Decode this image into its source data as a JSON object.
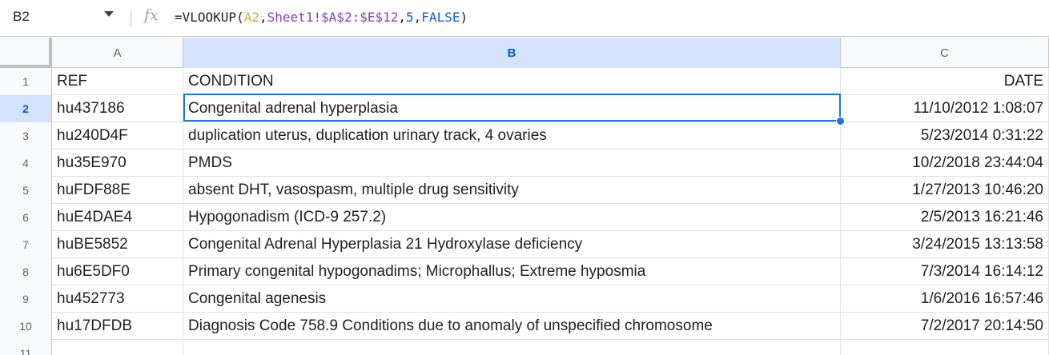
{
  "name_box": {
    "value": "B2"
  },
  "formula_bar": {
    "fx_label": "fx",
    "formula": {
      "prefix": "=VLOOKUP(",
      "arg1": "A2",
      "sep1": ",",
      "arg2": "Sheet1!$A$2:$E$12",
      "sep2": ",",
      "arg3": "5",
      "sep3": ",",
      "arg4": "FALSE",
      "suffix": ")"
    }
  },
  "columns": [
    {
      "label": "A"
    },
    {
      "label": "B"
    },
    {
      "label": "C"
    }
  ],
  "rows": [
    {
      "num": "1",
      "A": "REF",
      "B": "CONDITION",
      "C": "DATE"
    },
    {
      "num": "2",
      "A": "hu437186",
      "B": "Congenital adrenal hyperplasia",
      "C": "11/10/2012 1:08:07"
    },
    {
      "num": "3",
      "A": "hu240D4F",
      "B": "duplication uterus, duplication urinary track, 4 ovaries",
      "C": "5/23/2014 0:31:22"
    },
    {
      "num": "4",
      "A": "hu35E970",
      "B": "PMDS",
      "C": "10/2/2018 23:44:04"
    },
    {
      "num": "5",
      "A": "huFDF88E",
      "B": "absent DHT, vasospasm, multiple drug sensitivity",
      "C": "1/27/2013 10:46:20"
    },
    {
      "num": "6",
      "A": "huE4DAE4",
      "B": "Hypogonadism (ICD-9 257.2)",
      "C": "2/5/2013 16:21:46"
    },
    {
      "num": "7",
      "A": "huBE5852",
      "B": "Congenital Adrenal Hyperplasia 21 Hydroxylase deficiency",
      "C": "3/24/2015 13:13:58"
    },
    {
      "num": "8",
      "A": "hu6E5DF0",
      "B": "Primary congenital hypogonadims; Microphallus; Extreme hyposmia",
      "C": "7/3/2014 16:14:12"
    },
    {
      "num": "9",
      "A": "hu452773",
      "B": "Congenital agenesis",
      "C": "1/6/2016 16:57:46"
    },
    {
      "num": "10",
      "A": "hu17DFDB",
      "B": "Diagnosis Code 758.9 Conditions due to anomaly of unspecified chromosome",
      "C": "7/2/2017 20:14:50"
    },
    {
      "num": "11",
      "A": "",
      "B": "",
      "C": ""
    }
  ],
  "active_cell": "B2",
  "colors": {
    "selection": "#1a73e8",
    "active_header_bg": "#d3e3fd",
    "active_header_text": "#0b57d0"
  }
}
